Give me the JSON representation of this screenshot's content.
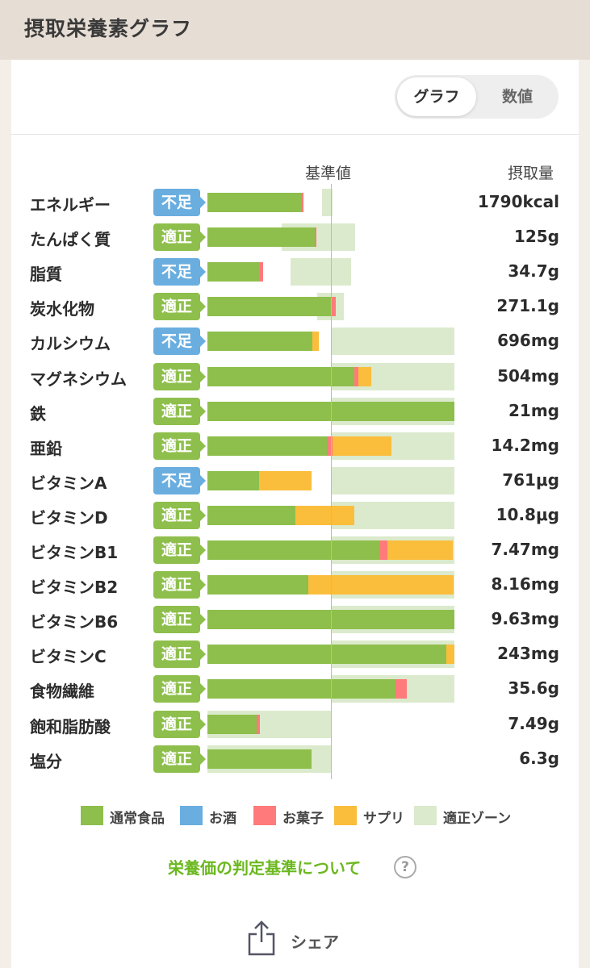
{
  "header": {
    "title": "摂取栄養素グラフ"
  },
  "toggle": {
    "graph_label": "グラフ",
    "number_label": "数値",
    "selected": "グラフ"
  },
  "columns": {
    "reference_label": "基準値",
    "intake_label": "摂取量"
  },
  "colors": {
    "normal_food": "#8ebf4c",
    "alcohol": "#6aaee0",
    "snack": "#ff7b7b",
    "supplement": "#fbbd3c",
    "zone": "#dbeacc",
    "badge_ok": "#8ebf4c",
    "badge_low": "#6aaee0"
  },
  "chart_data": {
    "type": "bar",
    "stacked": true,
    "orientation": "horizontal",
    "scale_note": "Bars relative to reference value (vertical reference line at 100%)",
    "rows": [
      {
        "name": "エネルギー",
        "status": "不足",
        "intake": "1790kcal",
        "normal": 75.5,
        "snack": 2.3,
        "supplement": 0,
        "zone": [
          92.7,
          101.3
        ]
      },
      {
        "name": "たんぱく質",
        "status": "適正",
        "intake": "125g",
        "normal": 86.8,
        "snack": 1.3,
        "supplement": 0,
        "zone": [
          60.3,
          119.9
        ]
      },
      {
        "name": "脂質",
        "status": "不足",
        "intake": "34.7g",
        "normal": 42.4,
        "snack": 2.6,
        "supplement": 0,
        "zone": [
          67.5,
          116.6
        ]
      },
      {
        "name": "炭水化物",
        "status": "適正",
        "intake": "271.1g",
        "normal": 100.3,
        "snack": 3.9,
        "supplement": 0,
        "zone": [
          88.7,
          110.3
        ]
      },
      {
        "name": "カルシウム",
        "status": "不足",
        "intake": "696mg",
        "normal": 84.8,
        "snack": 0,
        "supplement": 5.3,
        "zone": [
          100,
          200
        ]
      },
      {
        "name": "マグネシウム",
        "status": "適正",
        "intake": "504mg",
        "normal": 119.2,
        "snack": 3.3,
        "supplement": 9.9,
        "zone": [
          100,
          200
        ]
      },
      {
        "name": "鉄",
        "status": "適正",
        "intake": "21mg",
        "normal": 200,
        "snack": 0,
        "supplement": 0,
        "zone": [
          100,
          200
        ]
      },
      {
        "name": "亜鉛",
        "status": "適正",
        "intake": "14.2mg",
        "normal": 96.6,
        "snack": 4.6,
        "supplement": 47.7,
        "zone": [
          100,
          200
        ]
      },
      {
        "name": "ビタミンA",
        "status": "不足",
        "intake": "761μg",
        "normal": 41.7,
        "snack": 0,
        "supplement": 42.4,
        "zone": [
          100,
          200
        ]
      },
      {
        "name": "ビタミンD",
        "status": "適正",
        "intake": "10.8μg",
        "normal": 71.5,
        "snack": 0,
        "supplement": 47.7,
        "zone": [
          100,
          200
        ]
      },
      {
        "name": "ビタミンB1",
        "status": "適正",
        "intake": "7.47mg",
        "normal": 139.7,
        "snack": 6.0,
        "supplement": 53.0,
        "zone": [
          100,
          200
        ]
      },
      {
        "name": "ビタミンB2",
        "status": "適正",
        "intake": "8.16mg",
        "normal": 81.5,
        "snack": 0,
        "supplement": 117.9,
        "zone": [
          100,
          200
        ]
      },
      {
        "name": "ビタミンB6",
        "status": "適正",
        "intake": "9.63mg",
        "normal": 200,
        "snack": 0,
        "supplement": 0,
        "zone": [
          100,
          200
        ]
      },
      {
        "name": "ビタミンC",
        "status": "適正",
        "intake": "243mg",
        "normal": 193.4,
        "snack": 0,
        "supplement": 6.6,
        "zone": [
          100,
          200
        ]
      },
      {
        "name": "食物繊維",
        "status": "適正",
        "intake": "35.6g",
        "normal": 152.3,
        "snack": 9.3,
        "supplement": 0,
        "zone": [
          100,
          200
        ]
      },
      {
        "name": "飽和脂肪酸",
        "status": "適正",
        "intake": "7.49g",
        "normal": 39.7,
        "snack": 2.6,
        "supplement": 0,
        "zone": [
          0,
          100
        ]
      },
      {
        "name": "塩分",
        "status": "適正",
        "intake": "6.3g",
        "normal": 84.1,
        "snack": 0,
        "supplement": 0,
        "zone": [
          0,
          100
        ]
      }
    ]
  },
  "legend": [
    {
      "key": "normal_food",
      "label": "通常食品"
    },
    {
      "key": "alcohol",
      "label": "お酒"
    },
    {
      "key": "snack",
      "label": "お菓子"
    },
    {
      "key": "supplement",
      "label": "サプリ"
    },
    {
      "key": "zone",
      "label": "適正ゾーン"
    }
  ],
  "link": {
    "label": "栄養価の判定基準について",
    "help": "?"
  },
  "share": {
    "label": "シェア"
  }
}
